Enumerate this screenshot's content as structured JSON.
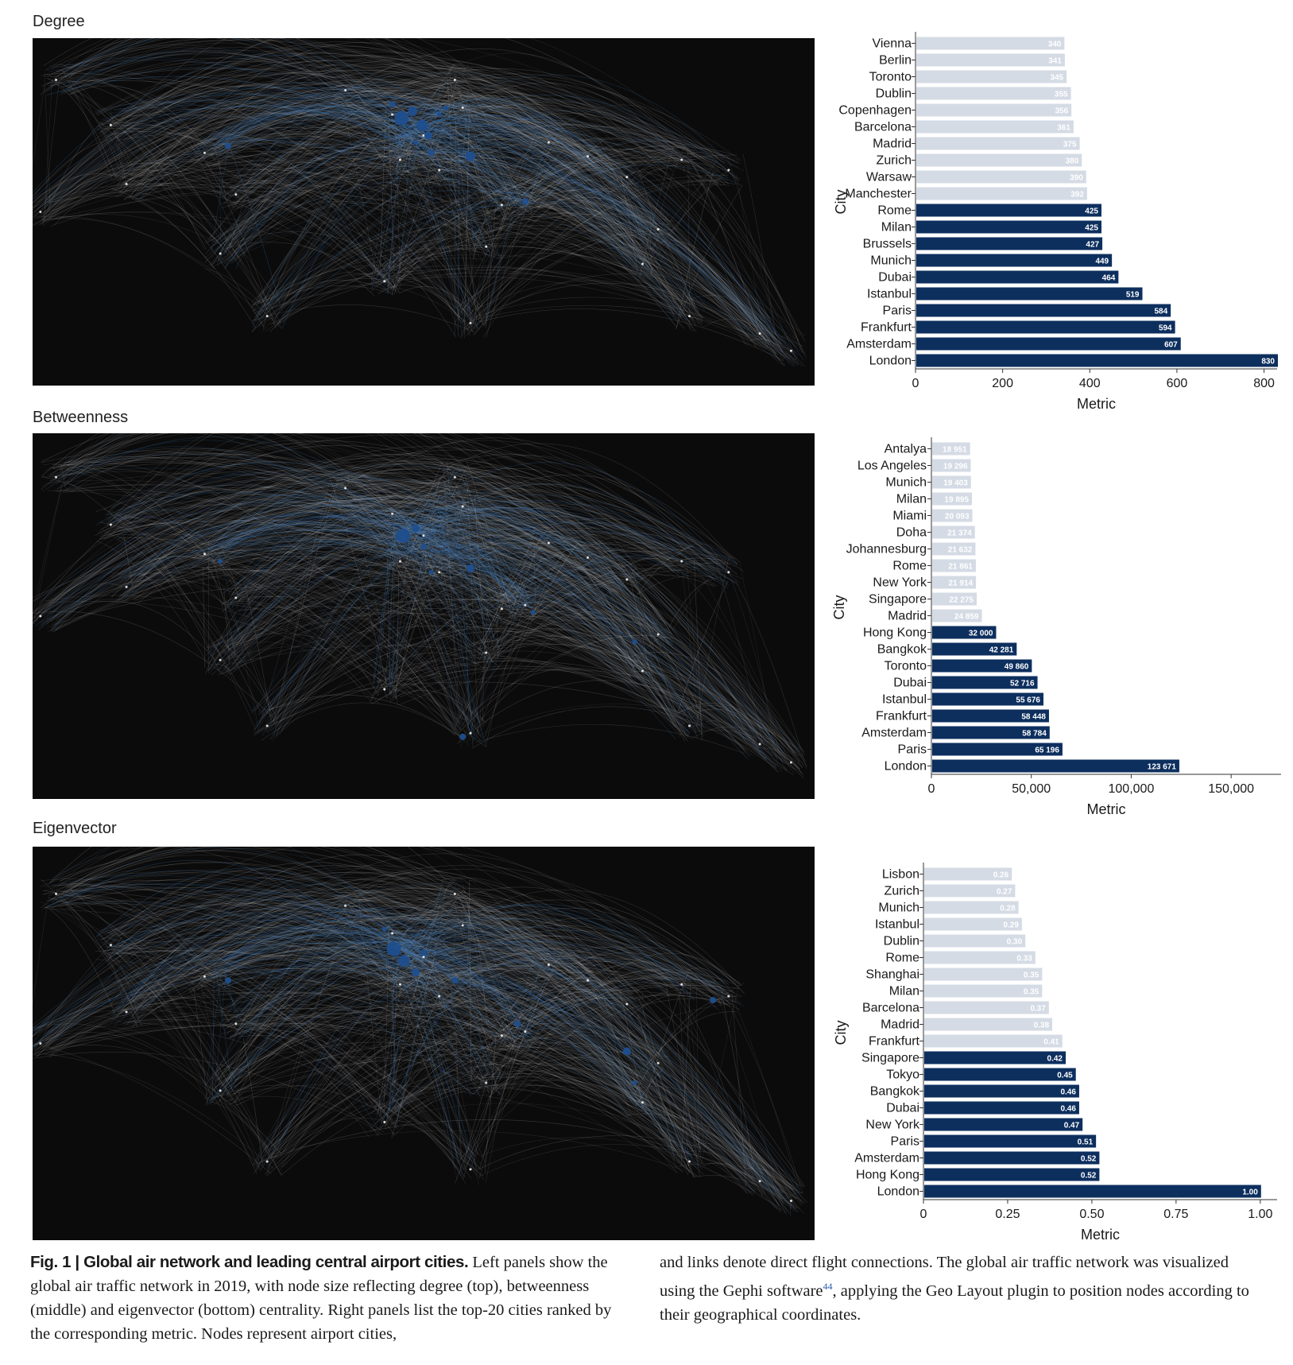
{
  "panels": [
    {
      "key": "degree",
      "title": "Degree",
      "chart_data": {
        "type": "bar",
        "orientation": "horizontal",
        "title": "Degree",
        "xlabel": "Metric",
        "ylabel": "City",
        "xlim": [
          0,
          830
        ],
        "xticks": [
          0,
          200,
          400,
          600,
          800
        ],
        "xtick_labels": [
          "0",
          "200",
          "400",
          "600",
          "800"
        ],
        "categories": [
          "Vienna",
          "Berlin",
          "Toronto",
          "Dublin",
          "Copenhagen",
          "Barcelona",
          "Madrid",
          "Zurich",
          "Warsaw",
          "Manchester",
          "Rome",
          "Milan",
          "Brussels",
          "Munich",
          "Dubai",
          "Istanbul",
          "Paris",
          "Frankfurt",
          "Amsterdam",
          "London"
        ],
        "values": [
          340,
          341,
          345,
          355,
          356,
          361,
          375,
          380,
          390,
          392,
          425,
          425,
          427,
          449,
          464,
          519,
          584,
          594,
          607,
          830
        ],
        "value_labels": [
          "340",
          "341",
          "345",
          "355",
          "356",
          "361",
          "375",
          "380",
          "390",
          "392",
          "425",
          "425",
          "427",
          "449",
          "464",
          "519",
          "584",
          "594",
          "607",
          "830"
        ],
        "highlight_top": 10
      }
    },
    {
      "key": "betweenness",
      "title": "Betweenness",
      "chart_data": {
        "type": "bar",
        "orientation": "horizontal",
        "title": "Betweenness",
        "xlabel": "Metric",
        "ylabel": "City",
        "xlim": [
          0,
          175000
        ],
        "xticks": [
          0,
          50000,
          100000,
          150000
        ],
        "xtick_labels": [
          "0",
          "50,000",
          "100,000",
          "150,000"
        ],
        "categories": [
          "Antalya",
          "Los Angeles",
          "Munich",
          "Milan",
          "Miami",
          "Doha",
          "Johannesburg",
          "Rome",
          "New York",
          "Singapore",
          "Madrid",
          "Hong Kong",
          "Bangkok",
          "Toronto",
          "Dubai",
          "Istanbul",
          "Frankfurt",
          "Amsterdam",
          "Paris",
          "London"
        ],
        "values": [
          18951,
          19296,
          19403,
          19895,
          20093,
          21374,
          21632,
          21861,
          21914,
          22275,
          24859,
          32000,
          42281,
          49860,
          52716,
          55676,
          58448,
          58784,
          65196,
          123671
        ],
        "value_labels": [
          "18 951",
          "19 296",
          "19 403",
          "19 895",
          "20 093",
          "21 374",
          "21 632",
          "21 861",
          "21 914",
          "22 275",
          "24 859",
          "32 000",
          "42 281",
          "49 860",
          "52 716",
          "55 676",
          "58 448",
          "58 784",
          "65 196",
          "123 671"
        ],
        "highlight_top": 9
      }
    },
    {
      "key": "eigenvector",
      "title": "Eigenvector",
      "chart_data": {
        "type": "bar",
        "orientation": "horizontal",
        "title": "Eigenvector",
        "xlabel": "Metric",
        "ylabel": "City",
        "xlim": [
          0,
          1.05
        ],
        "xticks": [
          0,
          0.25,
          0.5,
          0.75,
          1.0
        ],
        "xtick_labels": [
          "0",
          "0.25",
          "0.50",
          "0.75",
          "1.00"
        ],
        "categories": [
          "Lisbon",
          "Zurich",
          "Munich",
          "Istanbul",
          "Dublin",
          "Rome",
          "Shanghai",
          "Milan",
          "Barcelona",
          "Madrid",
          "Frankfurt",
          "Singapore",
          "Tokyo",
          "Bangkok",
          "Dubai",
          "New York",
          "Paris",
          "Amsterdam",
          "Hong Kong",
          "London"
        ],
        "values": [
          0.26,
          0.27,
          0.28,
          0.29,
          0.3,
          0.33,
          0.35,
          0.35,
          0.37,
          0.38,
          0.41,
          0.42,
          0.45,
          0.46,
          0.46,
          0.47,
          0.51,
          0.52,
          0.52,
          1.0
        ],
        "value_labels": [
          "0.26",
          "0.27",
          "0.28",
          "0.29",
          "0.30",
          "0.33",
          "0.35",
          "0.35",
          "0.37",
          "0.38",
          "0.41",
          "0.42",
          "0.45",
          "0.46",
          "0.46",
          "0.47",
          "0.51",
          "0.52",
          "0.52",
          "1.00"
        ],
        "highlight_top": 9
      }
    }
  ],
  "colors": {
    "highlight_bar": "#0d2f5e",
    "other_bar": "#d5dbe5",
    "network_bg": "#0b0b0b",
    "edge_white": "#d9d9d9",
    "edge_blue": "#3f7ec4",
    "node_blue": "#1f4f8f"
  },
  "caption": {
    "label": "Fig. 1",
    "separator": " | ",
    "heading": "Global air network and leading central airport cities.",
    "left_text": "Left panels show the global air traffic network in 2019, with node size reflecting degree (top), betweenness (middle) and eigenvector (bottom) centrality. Right panels list the top-20 cities ranked by the corresponding metric. Nodes represent airport cities,",
    "right_text_before_ref": "and links denote direct flight connections. The global air traffic network was visualized using the Gephi software",
    "ref": "44",
    "right_text_after_ref": ", applying the Geo Layout plugin to position nodes according to their geographical coordinates."
  }
}
